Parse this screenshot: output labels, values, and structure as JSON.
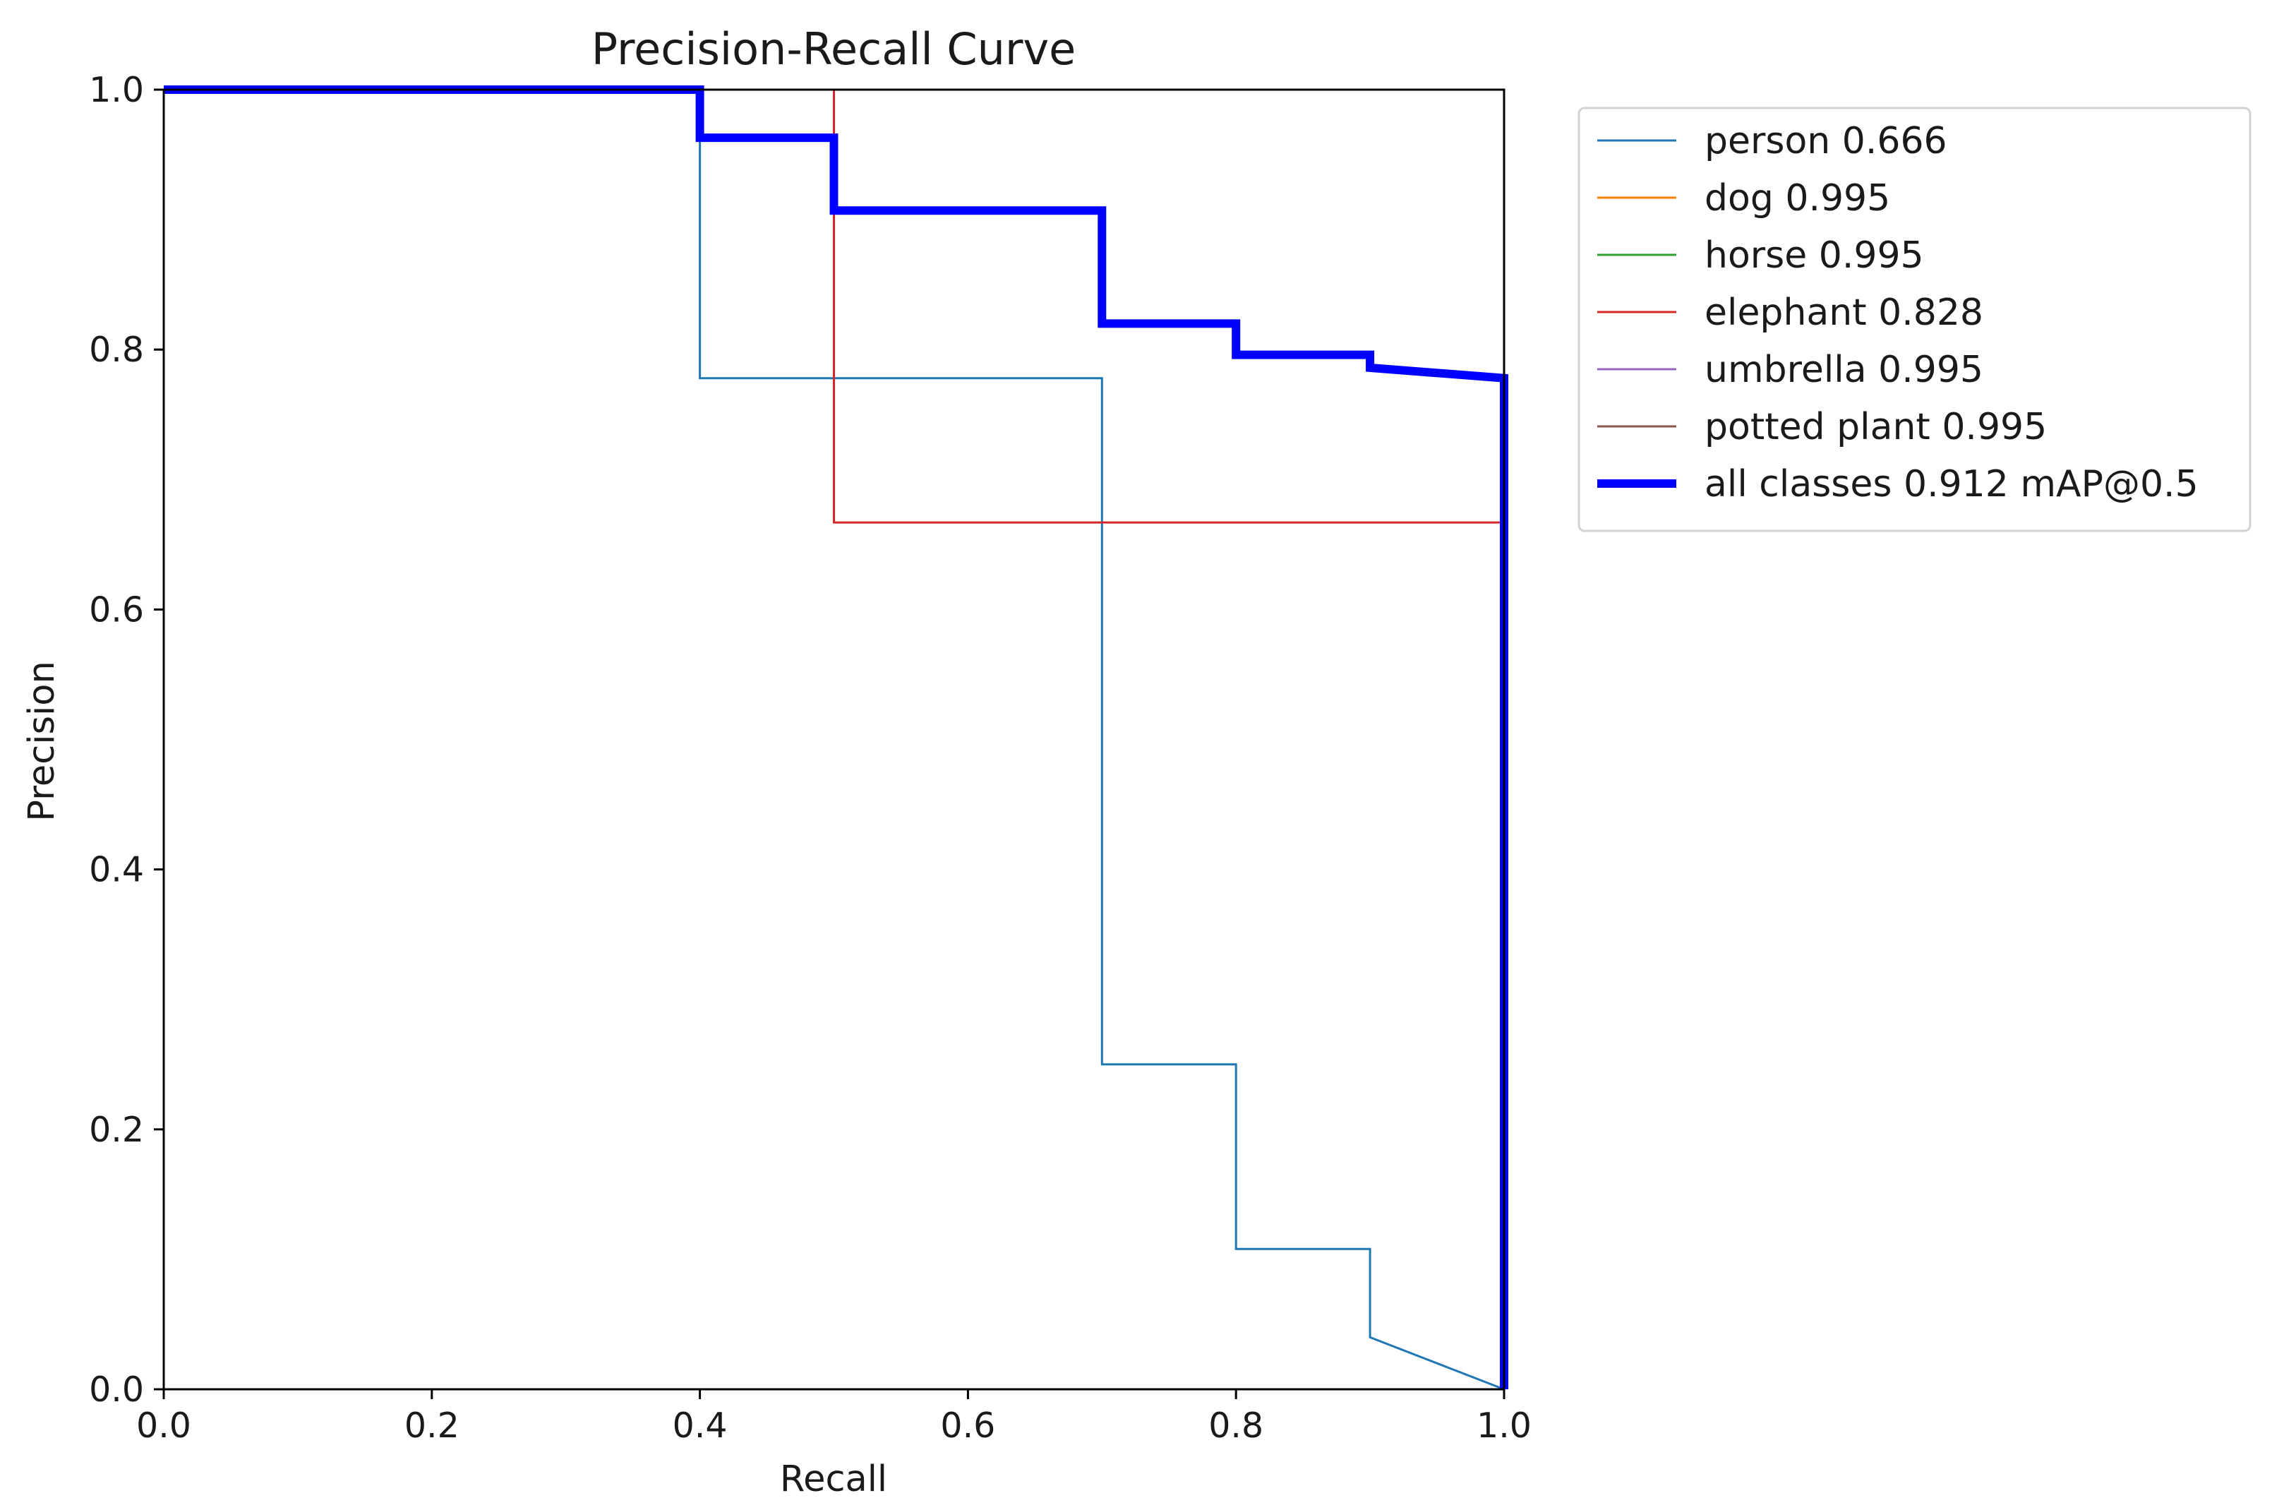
{
  "chart_data": {
    "type": "line",
    "title": "Precision-Recall Curve",
    "xlabel": "Recall",
    "ylabel": "Precision",
    "xlim": [
      0,
      1
    ],
    "ylim": [
      0,
      1
    ],
    "xticks": [
      0.0,
      0.2,
      0.4,
      0.6,
      0.8,
      1.0
    ],
    "yticks": [
      0.0,
      0.2,
      0.4,
      0.6,
      0.8,
      1.0
    ],
    "xtick_labels": [
      "0.0",
      "0.2",
      "0.4",
      "0.6",
      "0.8",
      "1.0"
    ],
    "ytick_labels": [
      "0.0",
      "0.2",
      "0.4",
      "0.6",
      "0.8",
      "1.0"
    ],
    "grid": false,
    "legend_position": "outside-top-right",
    "series": [
      {
        "name": "person 0.666",
        "color": "#1f77b4",
        "emphasis": "normal",
        "x": [
          0,
          0.4,
          0.4,
          0.7,
          0.7,
          0.8,
          0.8,
          0.9,
          0.9,
          1.0
        ],
        "y": [
          1,
          1,
          0.778,
          0.778,
          0.25,
          0.25,
          0.108,
          0.108,
          0.04,
          0
        ]
      },
      {
        "name": "dog 0.995",
        "color": "#ff7f0e",
        "emphasis": "normal",
        "x": [
          0,
          1,
          1
        ],
        "y": [
          1,
          1,
          0
        ]
      },
      {
        "name": "horse 0.995",
        "color": "#2ca02c",
        "emphasis": "normal",
        "x": [
          0,
          1,
          1
        ],
        "y": [
          1,
          1,
          0
        ]
      },
      {
        "name": "elephant 0.828",
        "color": "#d62728",
        "emphasis": "normal",
        "x": [
          0,
          0.5,
          0.5,
          1.0,
          1.0
        ],
        "y": [
          1,
          1,
          0.667,
          0.667,
          0
        ]
      },
      {
        "name": "umbrella 0.995",
        "color": "#9467bd",
        "emphasis": "normal",
        "x": [
          0,
          1,
          1
        ],
        "y": [
          1,
          1,
          0
        ]
      },
      {
        "name": "potted plant 0.995",
        "color": "#8c564b",
        "emphasis": "normal",
        "x": [
          0,
          1,
          1
        ],
        "y": [
          1,
          1,
          0
        ]
      },
      {
        "name": "all classes 0.912 mAP@0.5",
        "color": "#0000ff",
        "emphasis": "bold",
        "x": [
          0,
          0.4,
          0.4,
          0.5,
          0.5,
          0.7,
          0.7,
          0.8,
          0.8,
          0.9,
          0.9,
          1.0,
          1.0
        ],
        "y": [
          1,
          1,
          0.963,
          0.963,
          0.907,
          0.907,
          0.82,
          0.82,
          0.796,
          0.796,
          0.786,
          0.778,
          0
        ]
      }
    ]
  }
}
